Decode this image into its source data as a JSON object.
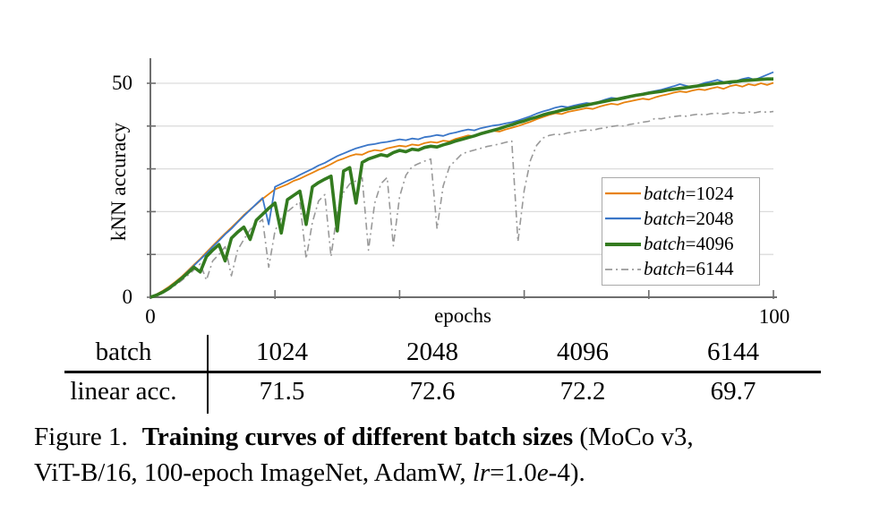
{
  "colors": {
    "grid": "#dcdcdc",
    "axis": "#6e6e6e",
    "orange": "#E8820D",
    "blue": "#3A76C8",
    "green": "#337B1F",
    "gray": "#999999"
  },
  "figure": {
    "axis": {
      "ylabel": "kNN accuracy",
      "xlabel": "epochs",
      "ytick_top": "50",
      "ytick_bottom": "0",
      "xtick_left": "0",
      "xtick_right": "100"
    },
    "legend": [
      {
        "var": "batch",
        "eq_value": "=1024",
        "color": "#E8820D",
        "sample_width": "2.2",
        "dash": ""
      },
      {
        "var": "batch",
        "eq_value": "=2048",
        "color": "#3A76C8",
        "sample_width": "2.2",
        "dash": ""
      },
      {
        "var": "batch",
        "eq_value": "=4096",
        "color": "#337B1F",
        "sample_width": "4",
        "dash": ""
      },
      {
        "var": "batch",
        "eq_value": "=6144",
        "color": "#999999",
        "sample_width": "1.8",
        "dash": "8 4 2 4"
      }
    ]
  },
  "chart_data": {
    "type": "line",
    "title": "",
    "xlabel": "epochs",
    "ylabel": "kNN accuracy",
    "xlim": [
      0,
      100
    ],
    "ylim": [
      0,
      55
    ],
    "xticks": [
      0,
      20,
      40,
      60,
      80,
      100
    ],
    "xtick_labels_shown": [
      "0",
      "100"
    ],
    "yticks": [
      0,
      10,
      20,
      30,
      40,
      50
    ],
    "ytick_labels_shown": [
      "0",
      "50"
    ],
    "grid": true,
    "legend_position": "lower right inside",
    "x": [
      0,
      1,
      2,
      3,
      4,
      5,
      6,
      7,
      8,
      9,
      10,
      11,
      12,
      13,
      14,
      15,
      16,
      17,
      18,
      19,
      20,
      21,
      22,
      23,
      24,
      25,
      26,
      27,
      28,
      29,
      30,
      31,
      32,
      33,
      34,
      35,
      36,
      37,
      38,
      39,
      40,
      41,
      42,
      43,
      44,
      45,
      46,
      47,
      48,
      49,
      50,
      51,
      52,
      53,
      54,
      55,
      56,
      57,
      58,
      59,
      60,
      61,
      62,
      63,
      64,
      65,
      66,
      67,
      68,
      69,
      70,
      71,
      72,
      73,
      74,
      75,
      76,
      77,
      78,
      79,
      80,
      81,
      82,
      83,
      84,
      85,
      86,
      87,
      88,
      89,
      90,
      91,
      92,
      93,
      94,
      95,
      96,
      97,
      98,
      99,
      100
    ],
    "series": [
      {
        "name": "batch=1024",
        "color": "#E8820D",
        "line_width": 1.8,
        "dash": "",
        "draw_order": 2,
        "values": [
          0,
          0.7,
          1.5,
          2.5,
          3.6,
          4.8,
          6.2,
          7.6,
          9.0,
          10.5,
          12.0,
          13.5,
          14.9,
          16.3,
          17.7,
          19.2,
          20.5,
          21.7,
          23.0,
          24.1,
          25.2,
          25.8,
          26.4,
          27.2,
          27.7,
          28.4,
          29.1,
          29.8,
          30.4,
          31.1,
          31.9,
          32.4,
          33.0,
          33.4,
          33.3,
          34.0,
          34.4,
          34.2,
          34.8,
          35.1,
          35.4,
          35.2,
          35.7,
          35.5,
          36.0,
          36.3,
          36.1,
          36.6,
          36.4,
          37.0,
          37.4,
          37.8,
          37.6,
          38.1,
          38.5,
          38.9,
          38.7,
          39.2,
          39.6,
          40.0,
          40.5,
          41.0,
          41.6,
          42.1,
          42.6,
          43.0,
          42.8,
          43.3,
          43.6,
          43.9,
          44.2,
          44.0,
          44.5,
          44.9,
          45.2,
          45.0,
          45.5,
          45.8,
          46.1,
          46.4,
          46.2,
          46.7,
          47.1,
          47.4,
          47.8,
          48.1,
          47.9,
          48.3,
          48.6,
          48.4,
          48.8,
          49.1,
          48.7,
          49.3,
          49.6,
          49.2,
          49.8,
          49.5,
          50.0,
          49.6,
          50.1
        ]
      },
      {
        "name": "batch=2048",
        "color": "#3A76C8",
        "line_width": 1.8,
        "dash": "",
        "draw_order": 3,
        "values": [
          0,
          0.6,
          1.3,
          2.3,
          3.4,
          4.6,
          6.0,
          7.4,
          8.8,
          10.2,
          11.8,
          13.2,
          14.7,
          16.0,
          17.5,
          19.0,
          20.4,
          21.8,
          23.2,
          17.0,
          25.8,
          26.5,
          27.2,
          27.8,
          28.6,
          29.3,
          30.0,
          30.8,
          31.4,
          32.2,
          33.0,
          33.6,
          34.2,
          34.8,
          35.2,
          35.6,
          35.8,
          36.1,
          36.3,
          36.6,
          36.9,
          36.7,
          37.1,
          36.9,
          37.4,
          37.6,
          37.9,
          37.7,
          38.2,
          38.5,
          38.9,
          39.2,
          39.0,
          39.5,
          39.8,
          40.1,
          40.3,
          40.6,
          40.9,
          41.3,
          41.8,
          42.3,
          42.9,
          43.4,
          43.8,
          44.3,
          44.6,
          44.4,
          44.8,
          45.1,
          45.4,
          45.2,
          45.7,
          46.2,
          46.6,
          46.4,
          46.8,
          47.0,
          47.3,
          47.6,
          47.9,
          48.2,
          48.5,
          48.9,
          49.3,
          49.8,
          49.4,
          49.1,
          49.6,
          50.1,
          50.4,
          50.8,
          50.3,
          49.9,
          50.5,
          51.0,
          51.3,
          50.8,
          51.4,
          52.0,
          52.6
        ]
      },
      {
        "name": "batch=4096",
        "color": "#337B1F",
        "line_width": 3.6,
        "dash": "",
        "draw_order": 4,
        "values": [
          0,
          0.5,
          1.2,
          2.1,
          3.2,
          4.4,
          5.7,
          7.0,
          5.9,
          9.5,
          11.0,
          12.3,
          8.5,
          13.8,
          15.2,
          16.4,
          13.5,
          18.0,
          19.4,
          20.8,
          22.0,
          15.0,
          22.8,
          23.8,
          24.8,
          17.0,
          25.8,
          26.8,
          27.6,
          28.3,
          15.5,
          29.5,
          30.3,
          22.0,
          31.5,
          32.3,
          32.8,
          33.3,
          33.0,
          33.8,
          34.3,
          34.0,
          34.6,
          34.4,
          35.0,
          35.3,
          35.1,
          35.6,
          36.0,
          36.5,
          36.9,
          37.3,
          37.7,
          38.2,
          38.6,
          39.0,
          39.4,
          39.9,
          40.3,
          40.8,
          41.2,
          41.7,
          42.1,
          42.6,
          43.0,
          43.3,
          43.7,
          44.0,
          44.3,
          44.6,
          44.9,
          45.2,
          45.5,
          45.8,
          46.1,
          46.3,
          46.6,
          46.9,
          47.2,
          47.4,
          47.7,
          47.9,
          48.1,
          48.4,
          48.6,
          48.8,
          49.0,
          49.2,
          49.4,
          49.6,
          49.8,
          50.0,
          50.1,
          50.3,
          50.4,
          50.6,
          50.7,
          50.8,
          50.9,
          51.0,
          51.0
        ]
      },
      {
        "name": "batch=6144",
        "color": "#999999",
        "line_width": 1.6,
        "dash": "8 4 2 4",
        "draw_order": 1,
        "values": [
          0,
          0.4,
          1.0,
          1.8,
          2.8,
          3.9,
          5.1,
          6.4,
          7.8,
          4.0,
          8.5,
          10.0,
          11.8,
          5.0,
          11.0,
          13.5,
          15.8,
          17.0,
          18.2,
          7.0,
          15.5,
          18.5,
          20.0,
          21.2,
          22.3,
          9.0,
          17.5,
          22.5,
          24.0,
          9.5,
          20.0,
          24.5,
          26.5,
          27.2,
          27.9,
          11.0,
          22.0,
          26.5,
          28.0,
          12.0,
          23.5,
          28.5,
          30.5,
          31.2,
          31.8,
          32.3,
          16.0,
          26.0,
          30.5,
          32.0,
          33.5,
          34.0,
          34.4,
          34.8,
          35.2,
          35.5,
          35.8,
          36.2,
          36.5,
          13.0,
          25.0,
          32.0,
          35.5,
          37.2,
          37.8,
          38.1,
          38.0,
          38.4,
          38.6,
          38.9,
          39.1,
          39.0,
          39.4,
          39.6,
          39.9,
          40.1,
          40.0,
          40.4,
          40.6,
          40.9,
          41.1,
          41.8,
          41.7,
          42.0,
          42.2,
          42.4,
          42.3,
          42.6,
          42.8,
          42.6,
          42.9,
          43.0,
          42.8,
          43.1,
          43.2,
          43.0,
          43.3,
          43.1,
          43.4,
          43.2,
          43.4
        ]
      }
    ]
  },
  "table": {
    "rows": [
      {
        "label": "batch",
        "cells": [
          "1024",
          "2048",
          "4096",
          "6144"
        ]
      },
      {
        "label": "linear acc.",
        "cells": [
          "71.5",
          "72.6",
          "72.2",
          "69.7"
        ]
      }
    ]
  },
  "caption": {
    "line1_prefix": "Figure 1.",
    "line1_bold": "Training curves of different batch sizes",
    "line1_suffix": " (MoCo v3,",
    "line2_a": "ViT-B/16, 100-epoch ImageNet, AdamW, ",
    "line2_lr": "lr",
    "line2_b": "=1.0",
    "line2_e": "e",
    "line2_c": "-4)."
  }
}
